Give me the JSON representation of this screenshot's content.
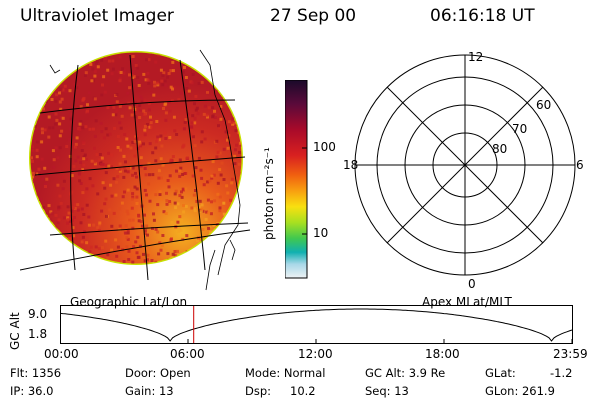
{
  "header": {
    "instrument": "Ultraviolet Imager",
    "date": "27 Sep 00",
    "time": "06:16:18 UT"
  },
  "colorbar": {
    "unit": "photon cm⁻²s⁻¹",
    "tick_100": "100",
    "tick_10": "10",
    "scale": "log",
    "colors_top_to_bottom": [
      "#1a0a2a",
      "#3a0a3a",
      "#7a0a2a",
      "#c01020",
      "#e04020",
      "#f08a10",
      "#f8c010",
      "#d8e810",
      "#60c840",
      "#10b0b0",
      "#a0d8e8",
      "#e8eef0"
    ]
  },
  "left_panel": {
    "label": "Geographic Lat/Lon",
    "image": "earth-disk-uv-image",
    "colors": {
      "rim": "#c8e000",
      "main": "#c81c22",
      "bright": "#f07a18"
    }
  },
  "polar_plot": {
    "label": "Apex MLat/MLT",
    "mlt_labels": {
      "top": "12",
      "left": "18",
      "right": "6",
      "bottom": "0"
    },
    "lat_labels": [
      "60",
      "70",
      "80"
    ]
  },
  "altitude_plot": {
    "ylabel": "GC Alt",
    "ytick_top": "9.0",
    "ytick_bottom": "1.8",
    "xticks": [
      "00:00",
      "06:00",
      "12:00",
      "18:00",
      "23:59"
    ],
    "current_time_marker": "06:16",
    "marker_color": "#cc0000"
  },
  "info": {
    "flt": "Flt: 1356",
    "ip": "IP: 36.0",
    "door": "Door: Open",
    "gain": "Gain: 13",
    "mode": "Mode: Normal",
    "dsp": "Dsp:",
    "dsp_value": "10.2",
    "gcalt": "GC Alt: 3.9 Re",
    "seq": "Seq: 13",
    "glat": "GLat:",
    "glat_value": "-1.2",
    "glon": "GLon: 261.9"
  }
}
